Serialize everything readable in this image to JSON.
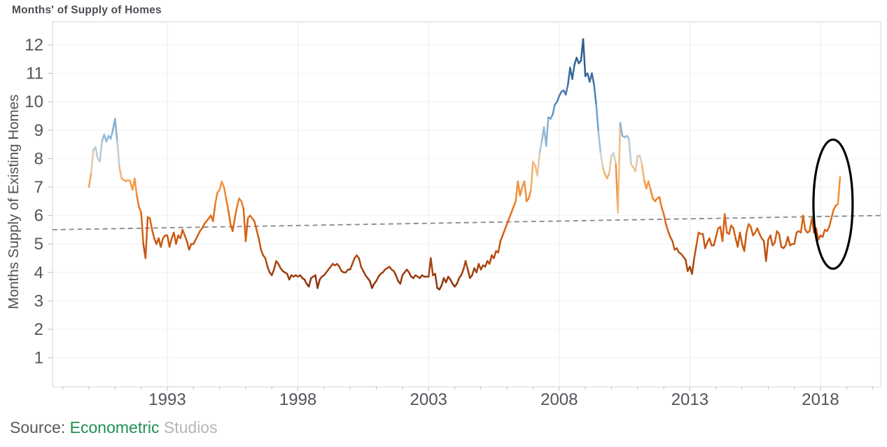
{
  "title": "Months' of Supply of Homes",
  "source": {
    "label": "Source:",
    "org": "Econometric",
    "org2": "Studios",
    "label_color": "#595959",
    "org_color": "#1f9151",
    "org2_color": "#b5b5b5"
  },
  "chart_data": {
    "type": "line",
    "title": "Months' of Supply of Homes",
    "ylabel": "Months Supply of Existing Homes",
    "xlabel": "",
    "x_tick_years": [
      1993,
      1998,
      2003,
      2008,
      2013,
      2018
    ],
    "y_ticks": [
      1,
      2,
      3,
      4,
      5,
      6,
      7,
      8,
      9,
      10,
      11,
      12
    ],
    "x_range_years": [
      1988.6,
      2020.3
    ],
    "y_range": [
      0,
      12.8
    ],
    "series_name": "Months supply of existing homes",
    "series_start": "1990-01",
    "frequency": "monthly",
    "values": [
      7.0,
      7.5,
      8.3,
      8.4,
      8.0,
      7.9,
      8.6,
      8.85,
      8.6,
      8.8,
      8.7,
      9.0,
      9.4,
      8.6,
      7.7,
      7.3,
      7.25,
      7.2,
      7.25,
      7.2,
      6.9,
      7.3,
      6.7,
      6.3,
      6.1,
      5.0,
      4.5,
      5.95,
      5.9,
      5.5,
      5.2,
      5.0,
      5.2,
      4.9,
      5.2,
      5.3,
      5.3,
      4.9,
      5.2,
      5.4,
      5.0,
      5.3,
      5.2,
      5.5,
      5.3,
      5.1,
      4.8,
      5.0,
      5.0,
      5.15,
      5.3,
      5.45,
      5.55,
      5.7,
      5.8,
      5.9,
      6.0,
      5.8,
      6.4,
      6.8,
      6.9,
      7.2,
      7.0,
      6.6,
      6.2,
      5.7,
      5.45,
      5.9,
      6.3,
      6.6,
      6.5,
      6.25,
      5.1,
      5.9,
      6.0,
      5.9,
      5.8,
      5.5,
      5.2,
      4.8,
      4.6,
      4.5,
      4.2,
      4.0,
      3.9,
      4.1,
      4.4,
      4.3,
      4.15,
      4.05,
      4.0,
      3.95,
      3.75,
      3.9,
      3.85,
      3.9,
      3.85,
      3.9,
      3.8,
      3.75,
      3.6,
      3.5,
      3.8,
      3.85,
      3.9,
      3.45,
      3.75,
      3.85,
      3.9,
      4.0,
      4.1,
      4.2,
      4.3,
      4.25,
      4.3,
      4.2,
      4.05,
      4.0,
      4.0,
      4.1,
      4.1,
      4.3,
      4.5,
      4.6,
      4.5,
      4.2,
      4.05,
      3.9,
      3.8,
      3.7,
      3.45,
      3.6,
      3.7,
      3.85,
      3.95,
      4.0,
      4.1,
      4.15,
      4.2,
      4.1,
      4.05,
      3.9,
      3.7,
      3.6,
      3.9,
      4.0,
      4.1,
      4.0,
      3.85,
      3.8,
      3.9,
      3.85,
      3.8,
      3.9,
      3.85,
      3.85,
      3.85,
      4.5,
      3.9,
      3.95,
      3.45,
      3.4,
      3.55,
      3.8,
      3.65,
      3.85,
      3.75,
      3.6,
      3.5,
      3.6,
      3.8,
      3.9,
      4.1,
      4.4,
      4.1,
      3.8,
      3.9,
      4.15,
      4.0,
      4.3,
      4.1,
      4.25,
      4.2,
      4.4,
      4.3,
      4.6,
      4.5,
      4.75,
      4.7,
      5.1,
      5.3,
      5.5,
      5.7,
      5.9,
      6.1,
      6.3,
      6.5,
      7.2,
      6.7,
      7.0,
      7.2,
      6.5,
      6.6,
      6.9,
      7.9,
      7.75,
      7.4,
      8.2,
      8.6,
      9.1,
      8.45,
      9.45,
      9.4,
      9.55,
      9.9,
      10.0,
      10.2,
      10.35,
      10.4,
      10.25,
      10.6,
      11.2,
      10.8,
      11.3,
      11.55,
      11.35,
      11.45,
      12.2,
      10.9,
      11.0,
      10.7,
      11.0,
      10.6,
      9.9,
      8.95,
      8.2,
      7.7,
      7.45,
      7.3,
      7.5,
      8.1,
      8.2,
      7.8,
      6.1,
      9.25,
      8.8,
      8.75,
      8.8,
      8.7,
      7.8,
      7.7,
      7.55,
      8.1,
      8.1,
      7.8,
      7.25,
      6.95,
      7.2,
      6.9,
      6.6,
      6.5,
      6.6,
      6.65,
      6.3,
      6.05,
      5.7,
      5.45,
      5.25,
      5.1,
      4.8,
      4.85,
      4.7,
      4.65,
      4.55,
      4.45,
      4.05,
      4.2,
      3.95,
      4.5,
      4.95,
      5.4,
      5.35,
      5.35,
      4.85,
      5.05,
      5.2,
      4.95,
      4.95,
      5.25,
      5.55,
      5.6,
      5.1,
      6.05,
      5.4,
      5.35,
      5.65,
      5.55,
      5.2,
      4.9,
      5.4,
      5.0,
      4.75,
      5.4,
      5.7,
      5.6,
      5.3,
      5.4,
      5.55,
      5.35,
      5.2,
      5.1,
      4.4,
      5.15,
      5.3,
      4.95,
      5.05,
      5.45,
      5.35,
      4.9,
      4.85,
      4.95,
      5.25,
      4.95,
      5.0,
      5.0,
      5.4,
      5.45,
      5.4,
      6.0,
      5.5,
      5.4,
      5.45,
      5.9,
      5.4,
      5.55,
      5.15,
      5.3,
      5.25,
      5.5,
      5.45,
      5.6,
      5.9,
      6.2,
      6.35,
      6.4,
      7.35
    ],
    "trend_line": {
      "start_year": 1988.6,
      "start_value": 5.5,
      "end_year": 2020.3,
      "end_value": 6.0,
      "color": "#888888",
      "style": "dashed"
    },
    "annotation_ellipse": {
      "center_year": 2018.48,
      "center_value": 6.4,
      "radius_years": 0.75,
      "radius_values": 2.27,
      "color": "#000000"
    },
    "color_scale": {
      "legend": "line colored by value: dark red = low supply, dark blue = high supply",
      "stops": [
        [
          3.2,
          "#7e2a0c"
        ],
        [
          4.2,
          "#a64510"
        ],
        [
          5.2,
          "#cd5a11"
        ],
        [
          6.2,
          "#e9731b"
        ],
        [
          7.0,
          "#f39440"
        ],
        [
          7.6,
          "#f6b877"
        ],
        [
          7.95,
          "#d9cfc0"
        ],
        [
          8.4,
          "#a5c7e0"
        ],
        [
          9.3,
          "#74a6cf"
        ],
        [
          10.3,
          "#4a7dab"
        ],
        [
          11.2,
          "#33639a"
        ],
        [
          12.2,
          "#25567f"
        ]
      ]
    },
    "grid": true,
    "gridline_color_h": "#f2f2f2",
    "gridline_color_v": "#ebebeb",
    "axis_color": "#d5d5d5",
    "tick_color": "#bbbbbb",
    "tick_label_color": "#51555b",
    "line_width": 2.5
  }
}
